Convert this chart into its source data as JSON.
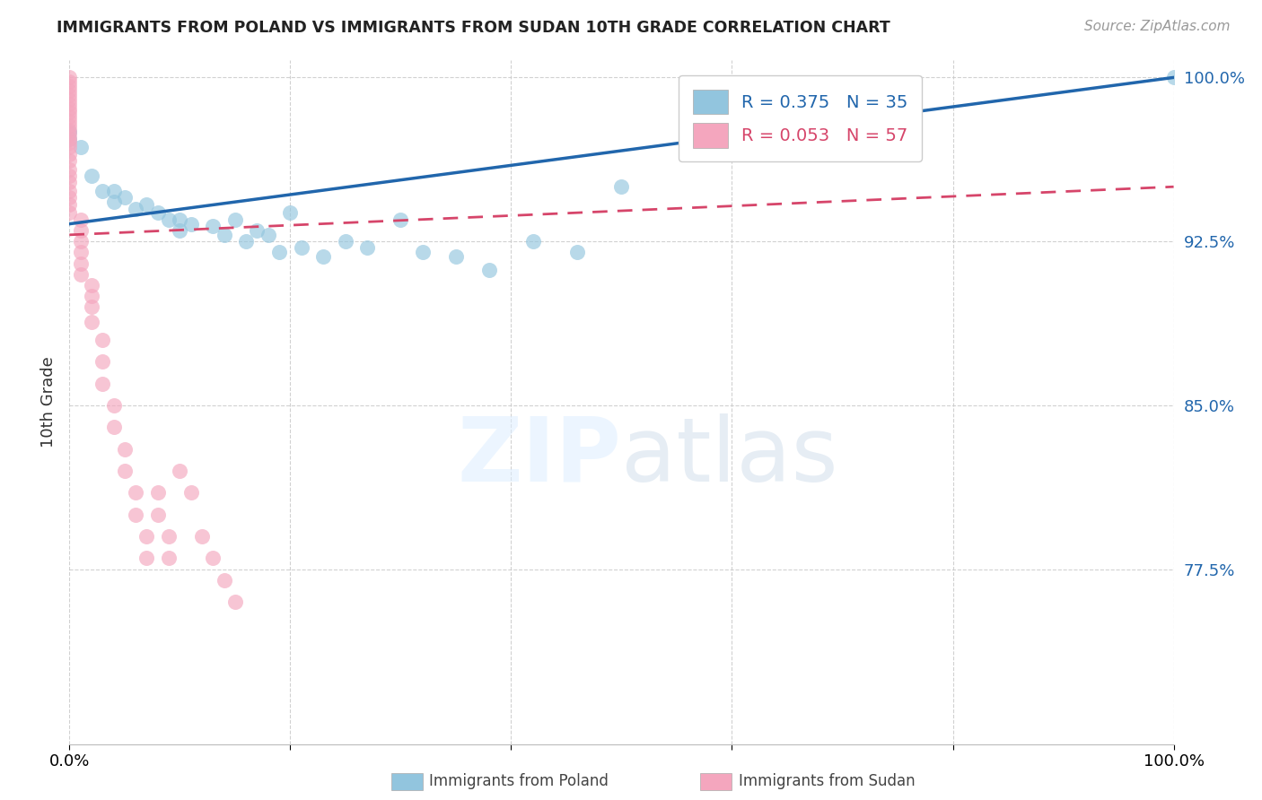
{
  "title": "IMMIGRANTS FROM POLAND VS IMMIGRANTS FROM SUDAN 10TH GRADE CORRELATION CHART",
  "source": "Source: ZipAtlas.com",
  "ylabel": "10th Grade",
  "xlim": [
    0.0,
    1.0
  ],
  "ylim": [
    0.695,
    1.008
  ],
  "yticks": [
    0.775,
    0.85,
    0.925,
    1.0
  ],
  "ytick_labels": [
    "77.5%",
    "85.0%",
    "92.5%",
    "100.0%"
  ],
  "poland_color": "#92c5de",
  "sudan_color": "#f4a6be",
  "poland_line_color": "#2166ac",
  "sudan_line_color": "#d6456a",
  "poland_R": 0.375,
  "poland_N": 35,
  "sudan_R": 0.053,
  "sudan_N": 57,
  "poland_scatter_x": [
    0.0,
    0.0,
    0.01,
    0.02,
    0.03,
    0.04,
    0.04,
    0.05,
    0.06,
    0.07,
    0.08,
    0.09,
    0.1,
    0.1,
    0.11,
    0.13,
    0.14,
    0.15,
    0.16,
    0.17,
    0.18,
    0.19,
    0.2,
    0.21,
    0.23,
    0.25,
    0.27,
    0.3,
    0.32,
    0.35,
    0.38,
    0.42,
    0.46,
    0.5,
    1.0
  ],
  "poland_scatter_y": [
    0.975,
    0.972,
    0.968,
    0.955,
    0.948,
    0.948,
    0.943,
    0.945,
    0.94,
    0.942,
    0.938,
    0.935,
    0.935,
    0.93,
    0.933,
    0.932,
    0.928,
    0.935,
    0.925,
    0.93,
    0.928,
    0.92,
    0.938,
    0.922,
    0.918,
    0.925,
    0.922,
    0.935,
    0.92,
    0.918,
    0.912,
    0.925,
    0.92,
    0.95,
    1.0
  ],
  "sudan_scatter_x": [
    0.0,
    0.0,
    0.0,
    0.0,
    0.0,
    0.0,
    0.0,
    0.0,
    0.0,
    0.0,
    0.0,
    0.0,
    0.0,
    0.0,
    0.0,
    0.0,
    0.0,
    0.0,
    0.0,
    0.0,
    0.0,
    0.0,
    0.0,
    0.0,
    0.0,
    0.0,
    0.01,
    0.01,
    0.01,
    0.01,
    0.01,
    0.01,
    0.02,
    0.02,
    0.02,
    0.02,
    0.03,
    0.03,
    0.03,
    0.04,
    0.04,
    0.05,
    0.05,
    0.06,
    0.06,
    0.07,
    0.07,
    0.08,
    0.08,
    0.09,
    0.09,
    0.1,
    0.11,
    0.12,
    0.13,
    0.14,
    0.15
  ],
  "sudan_scatter_y": [
    1.0,
    0.998,
    0.996,
    0.994,
    0.992,
    0.99,
    0.988,
    0.986,
    0.984,
    0.982,
    0.98,
    0.978,
    0.976,
    0.974,
    0.972,
    0.97,
    0.968,
    0.965,
    0.962,
    0.958,
    0.955,
    0.952,
    0.948,
    0.945,
    0.942,
    0.938,
    0.935,
    0.93,
    0.925,
    0.92,
    0.915,
    0.91,
    0.905,
    0.9,
    0.895,
    0.888,
    0.88,
    0.87,
    0.86,
    0.85,
    0.84,
    0.83,
    0.82,
    0.81,
    0.8,
    0.79,
    0.78,
    0.81,
    0.8,
    0.79,
    0.78,
    0.82,
    0.81,
    0.79,
    0.78,
    0.77,
    0.76
  ],
  "poland_line_x": [
    0.0,
    1.0
  ],
  "poland_line_y": [
    0.933,
    1.0
  ],
  "sudan_line_x": [
    0.0,
    1.0
  ],
  "sudan_line_y": [
    0.928,
    0.95
  ]
}
